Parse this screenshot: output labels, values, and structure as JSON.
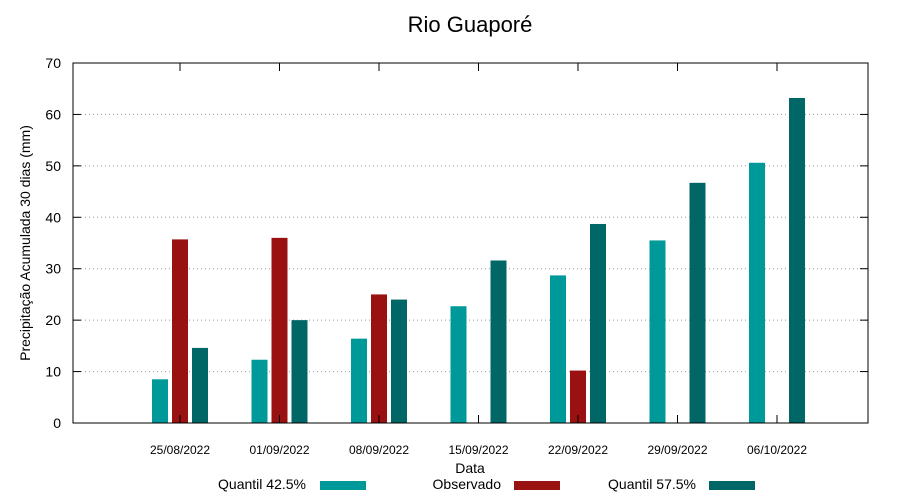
{
  "chart_data": {
    "type": "bar",
    "title": "Rio Guaporé",
    "xlabel": "Data",
    "ylabel": "Precipitação Acumulada 30 dias (mm)",
    "ylim": [
      0,
      70
    ],
    "yticks": [
      0,
      10,
      20,
      30,
      40,
      50,
      60,
      70
    ],
    "grid": true,
    "legend_position": "bottom",
    "categories": [
      "25/08/2022",
      "01/09/2022",
      "08/09/2022",
      "15/09/2022",
      "22/09/2022",
      "29/09/2022",
      "06/10/2022"
    ],
    "series": [
      {
        "name": "Quantil 42.5%",
        "color": "#009999",
        "values": [
          8.5,
          12.3,
          16.4,
          22.7,
          28.7,
          35.5,
          50.6
        ]
      },
      {
        "name": "Observado",
        "color": "#991111",
        "values": [
          35.7,
          36.0,
          25.0,
          null,
          10.2,
          null,
          null
        ]
      },
      {
        "name": "Quantil 57.5%",
        "color": "#006666",
        "values": [
          14.6,
          20.0,
          24.0,
          31.6,
          38.7,
          46.7,
          63.2
        ]
      }
    ]
  }
}
